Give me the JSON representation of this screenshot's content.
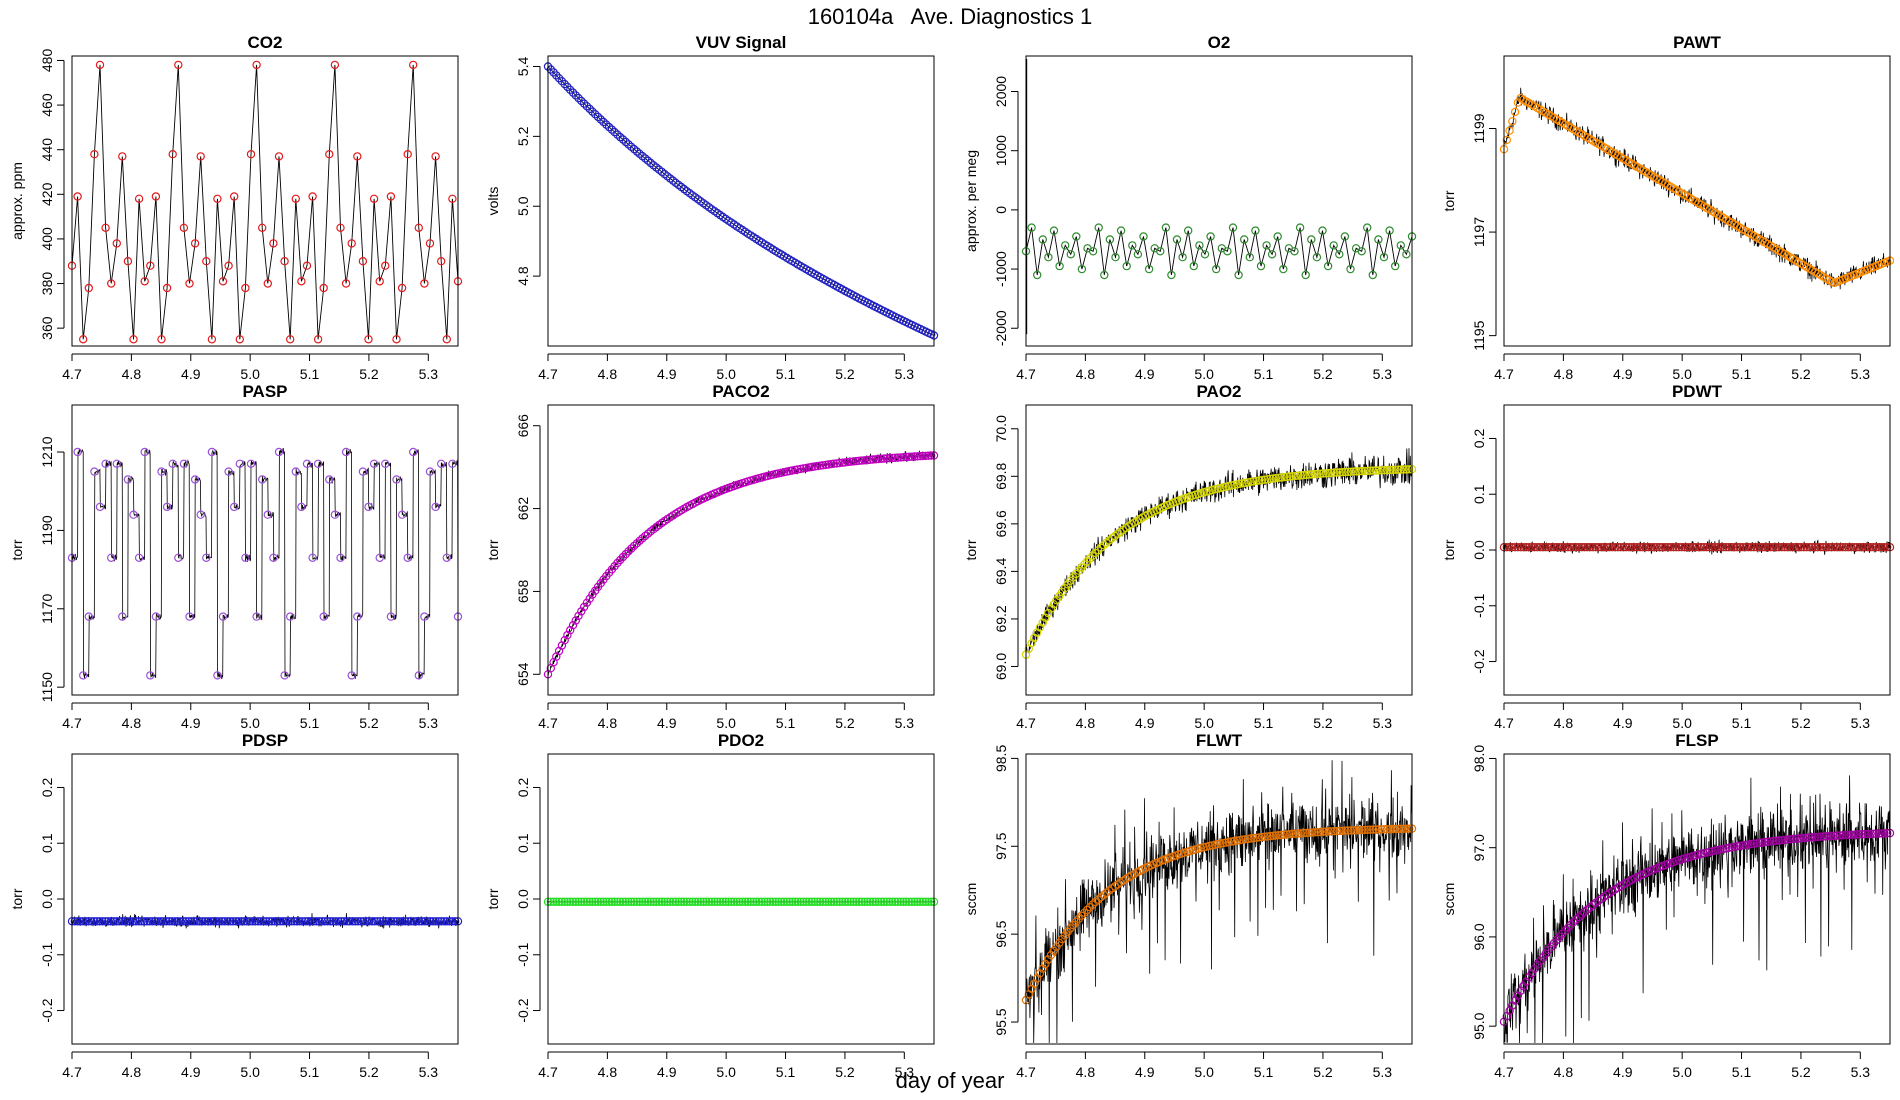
{
  "page": {
    "title": "160104a   Ave. Diagnostics 1",
    "xlabel": "day of year"
  },
  "chart_data": [
    {
      "type": "line",
      "title": "CO2",
      "ylabel": "approx. ppm",
      "xlim": [
        4.7,
        5.35
      ],
      "ylim": [
        352,
        482
      ],
      "yticks": [
        "360",
        "380",
        "400",
        "420",
        "440",
        "460",
        "480"
      ],
      "xticks": [
        "4.7",
        "4.8",
        "4.9",
        "5.0",
        "5.1",
        "5.2",
        "5.3"
      ],
      "color": "#e41a1c",
      "pattern": "cycle",
      "cycle_values": [
        388,
        419,
        355,
        378,
        438,
        478,
        405,
        380,
        398,
        437,
        390,
        355,
        418,
        381
      ],
      "noise": 0
    },
    {
      "type": "line",
      "title": "VUV Signal",
      "ylabel": "volts",
      "xlim": [
        4.7,
        5.35
      ],
      "ylim": [
        4.6,
        5.43
      ],
      "yticks": [
        "4.8",
        "5.0",
        "5.2",
        "5.4"
      ],
      "xticks": [
        "4.7",
        "4.8",
        "4.9",
        "5.0",
        "5.1",
        "5.2",
        "5.3"
      ],
      "color": "#2020c0",
      "pattern": "decay",
      "start": 5.4,
      "end": 4.63,
      "noise": 0
    },
    {
      "type": "line",
      "title": "O2",
      "ylabel": "approx. per meg",
      "xlim": [
        4.7,
        5.35
      ],
      "ylim": [
        -2300,
        2600
      ],
      "yticks": [
        "-2000",
        "-1000",
        "0",
        "1000",
        "2000"
      ],
      "xticks": [
        "4.7",
        "4.8",
        "4.9",
        "5.0",
        "5.1",
        "5.2",
        "5.3"
      ],
      "color": "#2e8b2e",
      "pattern": "cycle",
      "cycle_values": [
        -700,
        -300,
        -1100,
        -500,
        -800,
        -350,
        -950,
        -600,
        -750,
        -450,
        -1000,
        -650
      ],
      "spike": [
        2550,
        -2100
      ],
      "noise": 0
    },
    {
      "type": "line",
      "title": "PAWT",
      "ylabel": "torr",
      "xlim": [
        4.7,
        5.35
      ],
      "ylim": [
        1194.8,
        1200.4
      ],
      "yticks": [
        "1195",
        "1197",
        "1199"
      ],
      "xticks": [
        "4.7",
        "4.8",
        "4.9",
        "5.0",
        "5.1",
        "5.2",
        "5.3"
      ],
      "color": "#ff8c00",
      "pattern": "pawt",
      "noise": 0.45
    },
    {
      "type": "line",
      "title": "PASP",
      "ylabel": "torr",
      "xlim": [
        4.7,
        5.35
      ],
      "ylim": [
        1148,
        1222
      ],
      "yticks": [
        "1150",
        "1170",
        "1190",
        "1210"
      ],
      "xticks": [
        "4.7",
        "4.8",
        "4.9",
        "5.0",
        "5.1",
        "5.2",
        "5.3"
      ],
      "color": "#9b4fd8",
      "pattern": "cycle",
      "cycle_values": [
        1183,
        1210,
        1153,
        1168,
        1205,
        1196,
        1207,
        1183,
        1207,
        1168,
        1203,
        1194
      ],
      "noise": 2
    },
    {
      "type": "line",
      "title": "PACO2",
      "ylabel": "torr",
      "xlim": [
        4.7,
        5.35
      ],
      "ylim": [
        653,
        667
      ],
      "yticks": [
        "654",
        "658",
        "662",
        "666"
      ],
      "xticks": [
        "4.7",
        "4.8",
        "4.9",
        "5.0",
        "5.1",
        "5.2",
        "5.3"
      ],
      "color": "#c000c0",
      "pattern": "rise",
      "start": 654,
      "end": 664.8,
      "rate": 0.085,
      "noise": 0.6
    },
    {
      "type": "line",
      "title": "PAO2",
      "ylabel": "torr",
      "xlim": [
        4.7,
        5.35
      ],
      "ylim": [
        68.88,
        70.1
      ],
      "yticks": [
        "69.0",
        "69.2",
        "69.4",
        "69.6",
        "69.8",
        "70.0"
      ],
      "xticks": [
        "4.7",
        "4.8",
        "4.9",
        "5.0",
        "5.1",
        "5.2",
        "5.3"
      ],
      "color": "#d4d400",
      "pattern": "rise",
      "start": 69.05,
      "end": 69.84,
      "rate": 0.075,
      "noise": 0.17
    },
    {
      "type": "line",
      "title": "PDWT",
      "ylabel": "torr",
      "xlim": [
        4.7,
        5.35
      ],
      "ylim": [
        -0.26,
        0.26
      ],
      "yticks": [
        "-0.2",
        "-0.1",
        "0.0",
        "0.1",
        "0.2"
      ],
      "xticks": [
        "4.7",
        "4.8",
        "4.9",
        "5.0",
        "5.1",
        "5.2",
        "5.3"
      ],
      "color": "#b22222",
      "pattern": "flat",
      "level": 0.005,
      "noise": 0.025
    },
    {
      "type": "line",
      "title": "PDSP",
      "ylabel": "torr",
      "xlim": [
        4.7,
        5.35
      ],
      "ylim": [
        -0.26,
        0.26
      ],
      "yticks": [
        "-0.2",
        "-0.1",
        "0.0",
        "0.1",
        "0.2"
      ],
      "xticks": [
        "4.7",
        "4.8",
        "4.9",
        "5.0",
        "5.1",
        "5.2",
        "5.3"
      ],
      "color": "#1f1fd0",
      "pattern": "flat",
      "level": -0.04,
      "noise": 0.025
    },
    {
      "type": "line",
      "title": "PDO2",
      "ylabel": "torr",
      "xlim": [
        4.7,
        5.35
      ],
      "ylim": [
        -0.26,
        0.26
      ],
      "yticks": [
        "-0.2",
        "-0.1",
        "0.0",
        "0.1",
        "0.2"
      ],
      "xticks": [
        "4.7",
        "4.8",
        "4.9",
        "5.0",
        "5.1",
        "5.2",
        "5.3"
      ],
      "color": "#22dd22",
      "pattern": "flat",
      "level": -0.005,
      "noise": 0
    },
    {
      "type": "line",
      "title": "FLWT",
      "ylabel": "sccm",
      "xlim": [
        4.7,
        5.35
      ],
      "ylim": [
        95.25,
        98.55
      ],
      "yticks": [
        "95.5",
        "96.5",
        "97.5",
        "98.5"
      ],
      "xticks": [
        "4.7",
        "4.8",
        "4.9",
        "5.0",
        "5.1",
        "5.2",
        "5.3"
      ],
      "color": "#e07000",
      "pattern": "rise",
      "start": 95.75,
      "end": 97.72,
      "rate": 0.07,
      "noise": 0.9,
      "spiky": true
    },
    {
      "type": "line",
      "title": "FLSP",
      "ylabel": "sccm",
      "xlim": [
        4.7,
        5.35
      ],
      "ylim": [
        94.8,
        98.05
      ],
      "yticks": [
        "95.0",
        "96.0",
        "97.0",
        "98.0"
      ],
      "xticks": [
        "4.7",
        "4.8",
        "4.9",
        "5.0",
        "5.1",
        "5.2",
        "5.3"
      ],
      "color": "#a000a0",
      "pattern": "rise",
      "start": 95.05,
      "end": 97.2,
      "rate": 0.08,
      "noise": 0.9,
      "spiky": true
    }
  ]
}
